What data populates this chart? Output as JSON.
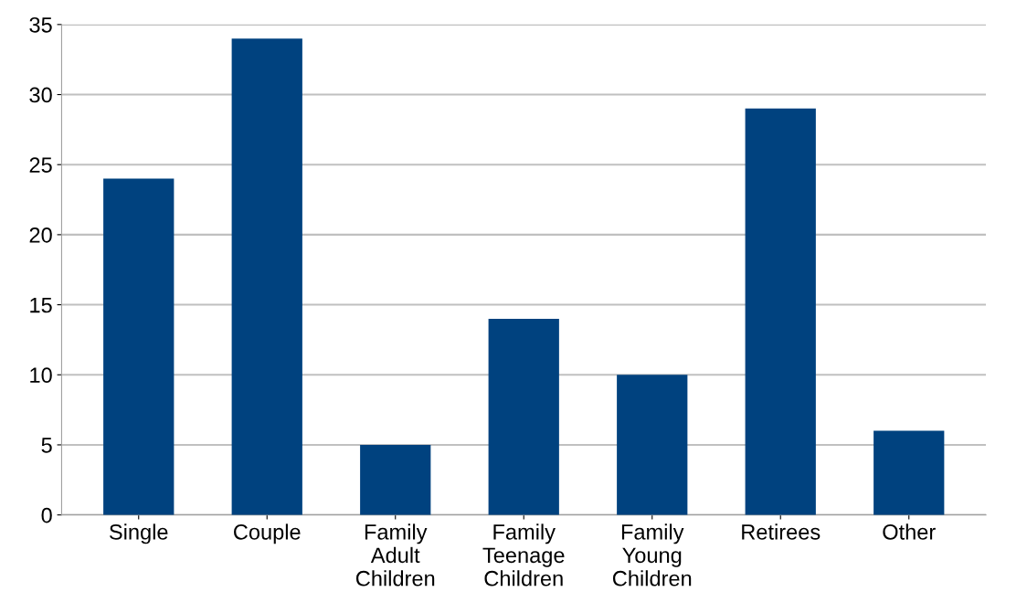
{
  "chart_data": {
    "type": "bar",
    "categories": [
      "Single",
      "Couple",
      "Family\nAdult\nChildren",
      "Family\nTeenage\nChildren",
      "Family\nYoung\nChildren",
      "Retirees",
      "Other"
    ],
    "values": [
      24,
      34,
      5,
      14,
      10,
      29,
      6
    ],
    "color": "#00427f",
    "ylim": [
      0,
      35
    ],
    "yticks": [
      0,
      5,
      10,
      15,
      20,
      25,
      30,
      35
    ],
    "grid": "y"
  }
}
